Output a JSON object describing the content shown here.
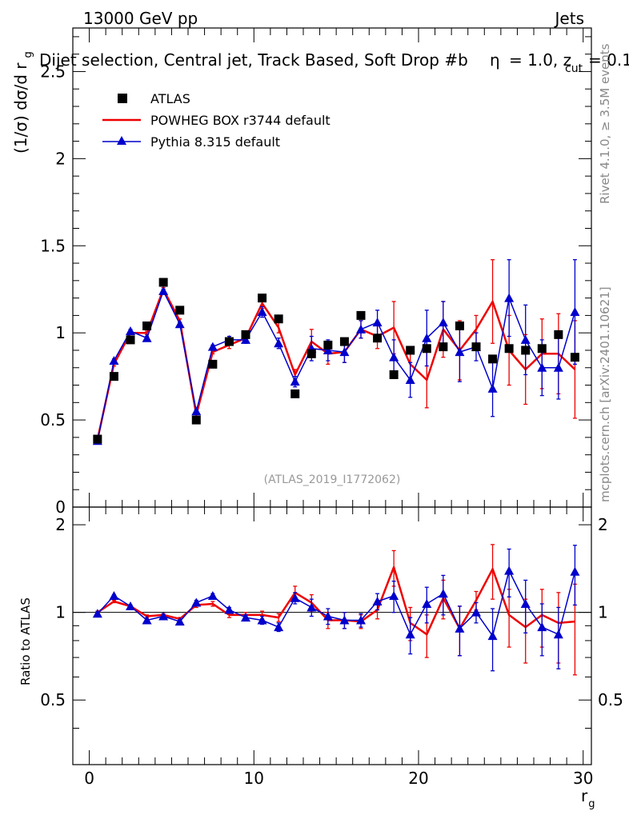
{
  "header": {
    "left": "13000 GeV pp",
    "right": "Jets"
  },
  "chart_data": {
    "type": "line",
    "title": "Dijet selection, Central jet, Track Based, Soft Drop #b",
    "title_beta": "= 1.0, z",
    "title_cut_sub": "cut",
    "title_zcut_val": "= 0.1",
    "title_eta_symbol": "η",
    "analysis_id": "(ATLAS_2019_I1772062)",
    "side_label_top": "Rivet 4.1.0, ≥ 3.5M events",
    "side_label_bottom": "mcplots.cern.ch [arXiv:2401.10621]",
    "xlabel": "r",
    "xlabel_sub": "g",
    "ylabel_main": "(1/σ) dσ/d r",
    "ylabel_main_sub": "g",
    "ylabel_ratio": "Ratio to ATLAS",
    "xlim": [
      -1,
      30.5
    ],
    "ylim_main": [
      0,
      2.75
    ],
    "ylim_ratio": [
      0.3,
      2.3
    ],
    "x_ticks": [
      0,
      10,
      20,
      30
    ],
    "x_tick_labels": [
      "0",
      "10",
      "20",
      "30"
    ],
    "y_ticks_main": [
      0,
      0.5,
      1,
      1.5,
      2,
      2.5
    ],
    "y_tick_labels_main": [
      "0",
      "0.5",
      "1",
      "1.5",
      "2",
      "2.5"
    ],
    "y_ticks_ratio": [
      0.5,
      1,
      2
    ],
    "y_tick_labels_ratio": [
      "0.5",
      "1",
      "2"
    ],
    "ratio_reference": 1.0,
    "x": [
      0.5,
      1.5,
      2.5,
      3.5,
      4.5,
      5.5,
      6.5,
      7.5,
      8.5,
      9.5,
      10.5,
      11.5,
      12.5,
      13.5,
      14.5,
      15.5,
      16.5,
      17.5,
      18.5,
      19.5,
      20.5,
      21.5,
      22.5,
      23.5,
      24.5,
      25.5,
      26.5,
      27.5,
      28.5,
      29.5
    ],
    "series": [
      {
        "name": "ATLAS",
        "style": "markers",
        "marker": "square",
        "color": "#000000",
        "values": [
          0.39,
          0.75,
          0.96,
          1.04,
          1.29,
          1.13,
          0.5,
          0.82,
          0.95,
          0.99,
          1.2,
          1.08,
          0.65,
          0.88,
          0.93,
          0.95,
          1.1,
          0.97,
          0.76,
          0.9,
          0.91,
          0.92,
          1.04,
          0.92,
          0.85,
          0.91,
          0.9,
          0.91,
          0.99,
          0.86
        ]
      },
      {
        "name": "POWHEG BOX r3744 default",
        "style": "line",
        "color": "#ee0000",
        "values": [
          0.39,
          0.82,
          1.0,
          1.0,
          1.25,
          1.07,
          0.53,
          0.89,
          0.93,
          0.97,
          1.17,
          1.03,
          0.76,
          0.95,
          0.88,
          0.89,
          1.02,
          0.98,
          1.03,
          0.82,
          0.73,
          1.02,
          0.9,
          1.02,
          1.18,
          0.9,
          0.79,
          0.88,
          0.88,
          0.79
        ],
        "errors": [
          0.01,
          0.01,
          0.01,
          0.01,
          0.01,
          0.01,
          0.01,
          0.01,
          0.02,
          0.02,
          0.03,
          0.03,
          0.03,
          0.07,
          0.06,
          0.06,
          0.05,
          0.07,
          0.15,
          0.1,
          0.16,
          0.16,
          0.17,
          0.08,
          0.24,
          0.2,
          0.2,
          0.2,
          0.23,
          0.28
        ],
        "ratio": [
          1.0,
          1.09,
          1.05,
          0.97,
          0.98,
          0.95,
          1.06,
          1.07,
          0.98,
          0.98,
          0.98,
          0.96,
          1.17,
          1.08,
          0.94,
          0.94,
          0.93,
          1.02,
          1.43,
          0.92,
          0.84,
          1.12,
          0.88,
          1.1,
          1.41,
          0.98,
          0.89,
          0.98,
          0.92,
          0.93
        ],
        "ratio_errors": [
          0.01,
          0.01,
          0.01,
          0.01,
          0.01,
          0.01,
          0.02,
          0.02,
          0.02,
          0.02,
          0.03,
          0.03,
          0.06,
          0.07,
          0.06,
          0.06,
          0.05,
          0.07,
          0.2,
          0.12,
          0.14,
          0.17,
          0.17,
          0.08,
          0.3,
          0.22,
          0.22,
          0.22,
          0.25,
          0.32
        ]
      },
      {
        "name": "Pythia 8.315 default",
        "style": "line+triangles",
        "marker": "triangle",
        "color": "#0000cc",
        "values": [
          0.38,
          0.84,
          1.01,
          0.97,
          1.24,
          1.05,
          0.55,
          0.92,
          0.96,
          0.96,
          1.12,
          0.94,
          0.72,
          0.91,
          0.9,
          0.89,
          1.02,
          1.06,
          0.86,
          0.73,
          0.97,
          1.06,
          0.89,
          0.92,
          0.68,
          1.2,
          0.96,
          0.8,
          0.8,
          1.12
        ],
        "errors": [
          0.01,
          0.01,
          0.01,
          0.01,
          0.01,
          0.01,
          0.01,
          0.01,
          0.02,
          0.02,
          0.03,
          0.03,
          0.03,
          0.07,
          0.06,
          0.06,
          0.05,
          0.07,
          0.1,
          0.1,
          0.16,
          0.12,
          0.17,
          0.08,
          0.16,
          0.22,
          0.2,
          0.16,
          0.18,
          0.3
        ],
        "ratio": [
          0.99,
          1.14,
          1.05,
          0.94,
          0.97,
          0.93,
          1.08,
          1.14,
          1.02,
          0.96,
          0.94,
          0.89,
          1.12,
          1.04,
          0.97,
          0.94,
          0.94,
          1.09,
          1.14,
          0.84,
          1.07,
          1.16,
          0.88,
          1.0,
          0.83,
          1.39,
          1.07,
          0.89,
          0.84,
          1.38
        ],
        "ratio_errors": [
          0.01,
          0.01,
          0.01,
          0.01,
          0.01,
          0.01,
          0.02,
          0.02,
          0.02,
          0.02,
          0.03,
          0.03,
          0.05,
          0.07,
          0.06,
          0.06,
          0.05,
          0.07,
          0.14,
          0.12,
          0.15,
          0.18,
          0.17,
          0.08,
          0.2,
          0.26,
          0.22,
          0.18,
          0.2,
          0.32
        ]
      }
    ],
    "legend_location": "top-left"
  }
}
